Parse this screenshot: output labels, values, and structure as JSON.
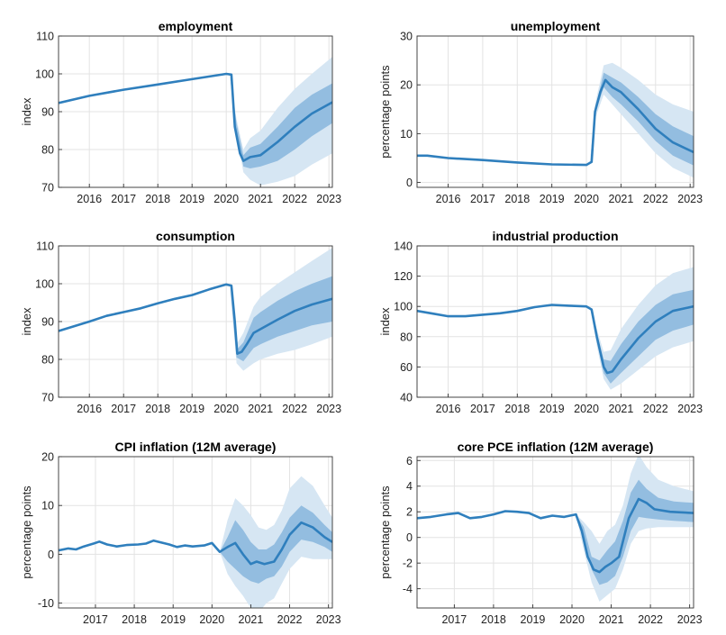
{
  "chart_data": [
    {
      "type": "line",
      "title": "employment",
      "ylabel": "index",
      "xlim": [
        2015.1,
        2023.1
      ],
      "ylim": [
        70,
        110
      ],
      "xticks": [
        2016,
        2017,
        2018,
        2019,
        2020,
        2021,
        2022,
        2023
      ],
      "yticks": [
        70,
        80,
        90,
        100,
        110
      ],
      "grid": true,
      "series": [
        {
          "x": [
            2015.1,
            2016,
            2017,
            2018,
            2019,
            2020,
            2020.15,
            2020.25,
            2020.4,
            2020.5,
            2020.7,
            2021,
            2021.5,
            2022,
            2022.5,
            2023.1
          ],
          "values": [
            92.3,
            94.2,
            95.8,
            97.2,
            98.6,
            100,
            99.8,
            86,
            79,
            77,
            78,
            78.5,
            82,
            86,
            89.5,
            92.5
          ]
        }
      ],
      "bands": {
        "x": [
          2020.1,
          2020.3,
          2020.5,
          2020.7,
          2021,
          2021.5,
          2022,
          2022.5,
          2023.1
        ],
        "outer_low": [
          100,
          84,
          74,
          72,
          70.5,
          71.5,
          73,
          76,
          79
        ],
        "outer_high": [
          100,
          88,
          80,
          83,
          85,
          91,
          96,
          100,
          104.5
        ],
        "inner_low": [
          100,
          85,
          75.5,
          75,
          75.5,
          77,
          80,
          83.5,
          87
        ],
        "inner_high": [
          100,
          87,
          78.5,
          80.5,
          81.5,
          86,
          91,
          94.5,
          97.5
        ]
      }
    },
    {
      "type": "line",
      "title": "unemployment",
      "ylabel": "percentage points",
      "xlim": [
        2015.1,
        2023.1
      ],
      "ylim": [
        -1,
        30
      ],
      "xticks": [
        2016,
        2017,
        2018,
        2019,
        2020,
        2021,
        2022,
        2023
      ],
      "yticks": [
        0,
        10,
        20,
        30
      ],
      "grid": true,
      "series": [
        {
          "x": [
            2015.1,
            2015.4,
            2016,
            2017,
            2018,
            2019,
            2020,
            2020.15,
            2020.25,
            2020.4,
            2020.55,
            2020.75,
            2021,
            2021.5,
            2022,
            2022.5,
            2023.1
          ],
          "values": [
            5.5,
            5.5,
            5,
            4.6,
            4.1,
            3.7,
            3.6,
            4.2,
            14.5,
            18.5,
            21,
            19.5,
            18.5,
            15,
            11,
            8.2,
            6.2
          ]
        }
      ],
      "bands": {
        "x": [
          2020.1,
          2020.25,
          2020.5,
          2020.75,
          2021,
          2021.5,
          2022,
          2022.5,
          2023.1
        ],
        "outer_low": [
          3.8,
          13,
          18,
          16,
          14,
          10,
          6,
          3,
          1
        ],
        "outer_high": [
          3.8,
          16,
          24,
          24.5,
          23.5,
          21,
          18,
          16,
          14.5
        ],
        "inner_low": [
          3.8,
          14,
          19.5,
          17.5,
          16,
          12.5,
          8.5,
          5.5,
          3.5
        ],
        "inner_high": [
          3.8,
          15,
          22.5,
          21.5,
          20.5,
          17.5,
          14,
          11.5,
          9.5
        ]
      }
    },
    {
      "type": "line",
      "title": "consumption",
      "ylabel": "index",
      "xlim": [
        2015.1,
        2023.1
      ],
      "ylim": [
        70,
        110
      ],
      "xticks": [
        2016,
        2017,
        2018,
        2019,
        2020,
        2021,
        2022,
        2023
      ],
      "yticks": [
        70,
        80,
        90,
        100,
        110
      ],
      "grid": true,
      "series": [
        {
          "x": [
            2015.1,
            2016,
            2016.5,
            2017,
            2017.5,
            2018,
            2018.5,
            2019,
            2019.5,
            2020,
            2020.15,
            2020.25,
            2020.32,
            2020.45,
            2020.6,
            2020.8,
            2021,
            2021.5,
            2022,
            2022.5,
            2023.1
          ],
          "values": [
            87.5,
            90,
            91.5,
            92.5,
            93.5,
            94.8,
            96,
            97,
            98.5,
            99.8,
            99.5,
            90,
            81.5,
            82,
            84,
            87,
            88,
            90.5,
            92.8,
            94.5,
            96
          ]
        }
      ],
      "bands": {
        "x": [
          2020.1,
          2020.3,
          2020.5,
          2020.8,
          2021,
          2021.5,
          2022,
          2022.5,
          2023.1
        ],
        "outer_low": [
          100,
          79,
          77,
          79,
          80,
          81.5,
          82.5,
          84,
          86
        ],
        "outer_high": [
          100,
          84,
          87,
          94,
          96.5,
          100,
          103,
          106,
          109.5
        ],
        "inner_low": [
          100,
          80.5,
          79.5,
          83,
          84,
          86,
          87.5,
          89,
          90
        ],
        "inner_high": [
          100,
          82.5,
          84.5,
          91,
          92.5,
          95.5,
          98,
          100,
          102
        ]
      }
    },
    {
      "type": "line",
      "title": "industrial production",
      "ylabel": "index",
      "xlim": [
        2015.1,
        2023.1
      ],
      "ylim": [
        40,
        140
      ],
      "xticks": [
        2016,
        2017,
        2018,
        2019,
        2020,
        2021,
        2022,
        2023
      ],
      "yticks": [
        40,
        60,
        80,
        100,
        120,
        140
      ],
      "grid": true,
      "series": [
        {
          "x": [
            2015.1,
            2015.5,
            2016,
            2016.5,
            2017,
            2017.5,
            2018,
            2018.5,
            2019,
            2019.5,
            2020,
            2020.15,
            2020.3,
            2020.5,
            2020.6,
            2020.75,
            2021,
            2021.5,
            2022,
            2022.5,
            2023.1
          ],
          "values": [
            97,
            95.5,
            93.5,
            93.5,
            94.5,
            95.5,
            97,
            99.5,
            101,
            100.5,
            100,
            98,
            80,
            60,
            56,
            57,
            65,
            79,
            90,
            97,
            100
          ]
        }
      ],
      "bands": {
        "x": [
          2020.1,
          2020.3,
          2020.5,
          2020.7,
          2021,
          2021.5,
          2022,
          2022.5,
          2023.1
        ],
        "outer_low": [
          100,
          74,
          52,
          45,
          49,
          58,
          67,
          73,
          77
        ],
        "outer_high": [
          100,
          85,
          70,
          71,
          85,
          101,
          114,
          122,
          126
        ],
        "inner_low": [
          100,
          77,
          56,
          49,
          56,
          67,
          78,
          84,
          88
        ],
        "inner_high": [
          100,
          82,
          65,
          64,
          75,
          90,
          101,
          108,
          111
        ]
      }
    },
    {
      "type": "line",
      "title": "CPI inflation (12M average)",
      "ylabel": "percentage points",
      "xlim": [
        2016.05,
        2023.1
      ],
      "ylim": [
        -11,
        20
      ],
      "xticks": [
        2017,
        2018,
        2019,
        2020,
        2021,
        2022,
        2023
      ],
      "yticks": [
        -10,
        0,
        10,
        20
      ],
      "grid": true,
      "series": [
        {
          "x": [
            2016.05,
            2016.3,
            2016.5,
            2016.7,
            2016.95,
            2017.1,
            2017.3,
            2017.55,
            2017.8,
            2018.1,
            2018.3,
            2018.5,
            2018.7,
            2018.9,
            2019.1,
            2019.3,
            2019.5,
            2019.8,
            2020,
            2020.2,
            2020.4,
            2020.6,
            2020.8,
            2021,
            2021.15,
            2021.35,
            2021.6,
            2021.8,
            2022,
            2022.3,
            2022.6,
            2022.9,
            2023.1
          ],
          "values": [
            0.8,
            1.2,
            1.0,
            1.6,
            2.2,
            2.6,
            2.0,
            1.6,
            1.9,
            2.0,
            2.2,
            2.8,
            2.4,
            2.0,
            1.5,
            1.8,
            1.6,
            1.8,
            2.3,
            0.5,
            1.5,
            2.3,
            0,
            -2,
            -1.5,
            -2,
            -1.5,
            1,
            4,
            6.5,
            5.5,
            3.5,
            2.5
          ]
        }
      ],
      "bands": {
        "x": [
          2020.2,
          2020.4,
          2020.6,
          2020.8,
          2021,
          2021.2,
          2021.4,
          2021.6,
          2021.8,
          2022,
          2022.3,
          2022.6,
          2022.9,
          2023.1
        ],
        "outer_low": [
          0.5,
          -4,
          -6.5,
          -8.5,
          -11,
          -12,
          -10,
          -9,
          -6,
          -3,
          -0.5,
          -1,
          -1,
          -1
        ],
        "outer_high": [
          0.5,
          7,
          11.5,
          10,
          8,
          5.5,
          5,
          6,
          9,
          13.5,
          16,
          14,
          10,
          7.5
        ],
        "inner_low": [
          0.5,
          -1.5,
          -3,
          -4.5,
          -5.5,
          -6,
          -5,
          -4.5,
          -2.5,
          0.5,
          3,
          2.5,
          1.5,
          0.5
        ],
        "inner_high": [
          0.5,
          3.5,
          7,
          5,
          2.5,
          1,
          1,
          2,
          4.5,
          7.5,
          10,
          8.5,
          6,
          4.5
        ]
      }
    },
    {
      "type": "line",
      "title": "core PCE inflation  (12M average)",
      "ylabel": "percentage points",
      "xlim": [
        2016.05,
        2023.1
      ],
      "ylim": [
        -5.5,
        6.3
      ],
      "xticks": [
        2017,
        2018,
        2019,
        2020,
        2021,
        2022,
        2023
      ],
      "yticks": [
        -4,
        -2,
        0,
        2,
        4,
        6
      ],
      "grid": true,
      "series": [
        {
          "x": [
            2016.05,
            2016.4,
            2016.8,
            2017.1,
            2017.4,
            2017.7,
            2018.0,
            2018.3,
            2018.6,
            2018.9,
            2019.2,
            2019.5,
            2019.8,
            2020.1,
            2020.25,
            2020.4,
            2020.55,
            2020.7,
            2020.85,
            2021,
            2021.2,
            2021.45,
            2021.7,
            2021.9,
            2022.1,
            2022.5,
            2023.1
          ],
          "values": [
            1.5,
            1.6,
            1.8,
            1.9,
            1.5,
            1.6,
            1.8,
            2.05,
            2.0,
            1.9,
            1.5,
            1.7,
            1.6,
            1.8,
            0.5,
            -1.5,
            -2.5,
            -2.7,
            -2.3,
            -2,
            -1.5,
            1.5,
            3,
            2.7,
            2.2,
            2.0,
            1.9
          ]
        }
      ],
      "bands": {
        "x": [
          2020.1,
          2020.3,
          2020.5,
          2020.7,
          2020.9,
          2021.1,
          2021.3,
          2021.5,
          2021.7,
          2021.9,
          2022.2,
          2022.6,
          2023.1
        ],
        "outer_low": [
          1.8,
          -1,
          -3.5,
          -5,
          -4.5,
          -4,
          -2.5,
          -0.5,
          0.5,
          0.7,
          0.8,
          0.8,
          0.8
        ],
        "outer_high": [
          1.8,
          1.2,
          0.5,
          -0.5,
          0.5,
          1,
          2.5,
          5,
          6.5,
          5.5,
          4.5,
          4,
          3.6
        ],
        "inner_low": [
          1.8,
          -0.3,
          -2.5,
          -3.7,
          -3.5,
          -3,
          -1.5,
          0.5,
          1.6,
          1.5,
          1.4,
          1.3,
          1.2
        ],
        "inner_high": [
          1.8,
          0.8,
          -1.5,
          -1.8,
          -1,
          -0.3,
          1.3,
          3.5,
          4.5,
          3.8,
          3.1,
          2.8,
          2.7
        ]
      }
    }
  ]
}
